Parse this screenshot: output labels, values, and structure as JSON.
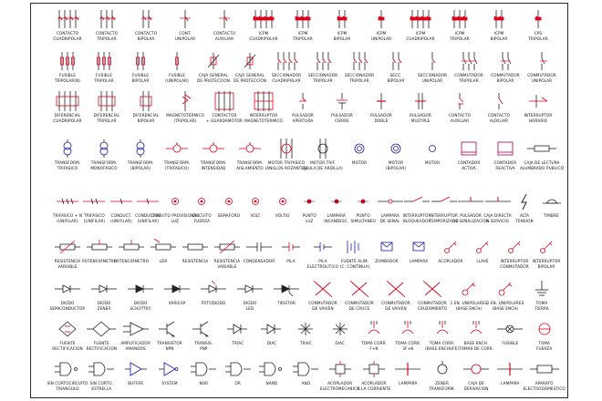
{
  "sheet": {
    "title": ""
  },
  "colors": {
    "red": "#e0001b",
    "dark": "#222222",
    "blue": "#1a1aa6",
    "magenta": "#b0004a"
  },
  "rows": [
    {
      "symbols": [
        {
          "icon": "contact-three-bar",
          "lines": [
            "CONTACTO",
            "CUADRIPOLAR"
          ]
        },
        {
          "icon": "contact-two-bar",
          "lines": [
            "CONTACTO",
            "TRIPOLAR"
          ]
        },
        {
          "icon": "contact-one-bar",
          "lines": [
            "CONTACTO",
            "BIPOLAR"
          ]
        },
        {
          "icon": "contact-single",
          "lines": [
            "CONT.",
            "UNIPOLAR"
          ]
        },
        {
          "icon": "contact-single",
          "lines": [
            "CONTACTO",
            "AUXILIAR"
          ]
        },
        {
          "icon": "breaker-four-pole",
          "lines": [
            "ICPM",
            "CUADRIPOLAR"
          ]
        },
        {
          "icon": "breaker-three-pole",
          "lines": [
            "ICPM",
            "TRIPOLAR"
          ]
        },
        {
          "icon": "breaker-two-pole",
          "lines": [
            "ICPM",
            "BIPOLAR"
          ]
        },
        {
          "icon": "breaker-one-pole",
          "lines": [
            "ICPM",
            "UNIPOLAR"
          ]
        },
        {
          "icon": "cps-four-pole",
          "lines": [
            "ICPM",
            "CUADRIPOLAR"
          ]
        },
        {
          "icon": "cps-three-pole",
          "lines": [
            "ICPM",
            "TRIPOLAR"
          ]
        },
        {
          "icon": "cps-two-pole",
          "lines": [
            "ICPM",
            "BIPOLAR"
          ]
        },
        {
          "icon": "cps-one-pole",
          "lines": [
            "CPS",
            "TRIPOLAR"
          ]
        }
      ]
    },
    {
      "symbols": [
        {
          "icon": "fuse-three",
          "lines": [
            "FUSIBLE",
            "TRIPOLAR(N)"
          ]
        },
        {
          "icon": "fuse-three",
          "lines": [
            "FUSIBLE",
            "TRIPOLAR"
          ]
        },
        {
          "icon": "fuse-two",
          "lines": [
            "FUSIBLE",
            "BIPOLAR"
          ]
        },
        {
          "icon": "fuse-one",
          "lines": [
            "FUSIBLE",
            "(UNIPOLAR)"
          ]
        },
        {
          "icon": "main-box",
          "lines": [
            "CAJA GENERAL",
            "DE PROTECCION"
          ]
        },
        {
          "icon": "main-box",
          "lines": [
            "CAJA GENERAL",
            "DE PROTECCION"
          ]
        },
        {
          "icon": "sectioner-four",
          "lines": [
            "SECCIONADOR",
            "CUADRIPOLAR"
          ]
        },
        {
          "icon": "sectioner-three",
          "lines": [
            "SECCIONADOR",
            "TRIPOLAR"
          ]
        },
        {
          "icon": "sectioner-two",
          "lines": [
            "SECCIONADOR",
            "TRIPOLAR"
          ]
        },
        {
          "icon": "sectioner-one",
          "lines": [
            "SECC.",
            "BIPOLAR"
          ]
        },
        {
          "icon": "sectioner-unipolar",
          "lines": [
            "SECCIONADOR",
            "UNIPOLAR"
          ]
        },
        {
          "icon": "switch-three",
          "lines": [
            "CONMUTADOR",
            "TRIPOLAR"
          ]
        },
        {
          "icon": "switch-two",
          "lines": [
            "CONMUTADOR",
            "BIPOLAR"
          ]
        },
        {
          "icon": "switch-one",
          "lines": [
            "CONMUTADOR",
            "UNIPOLAR"
          ]
        }
      ]
    },
    {
      "symbols": [
        {
          "icon": "differential-four",
          "lines": [
            "DIFERENCIAL",
            "CUADRIPOLAR"
          ]
        },
        {
          "icon": "differential-two",
          "lines": [
            "DIFERENCIAL",
            "TRIPOLAR"
          ]
        },
        {
          "icon": "differential-one",
          "lines": [
            "DIFERENCIAL",
            "BIPOLAR"
          ]
        },
        {
          "icon": "thermal-mag",
          "lines": [
            "MAGNETOTERMICO",
            "(TRIPOLAR)"
          ]
        },
        {
          "icon": "contactor-box",
          "lines": [
            "CONTACTOR",
            "+ GUARDAMOTOR"
          ]
        },
        {
          "icon": "breaker-box",
          "lines": [
            "INTERRUPTOR",
            "MAGNETOTERMICO"
          ]
        },
        {
          "icon": "pushbutton-open",
          "lines": [
            "PULSADOR",
            "APERTURA"
          ]
        },
        {
          "icon": "pushbutton-close",
          "lines": [
            "PULSADOR",
            "CIERRE"
          ]
        },
        {
          "icon": "pushbutton-red",
          "lines": [
            "PULSADOR",
            "DOBLE"
          ]
        },
        {
          "icon": "pushbutton-multi",
          "lines": [
            "PULSADOR",
            "MULTIPLE"
          ]
        },
        {
          "icon": "contact-nc",
          "lines": [
            "CONTACTO",
            "AUXILIAR"
          ]
        },
        {
          "icon": "contact-no",
          "lines": [
            "CONTACTO",
            "AUXILIAR"
          ]
        },
        {
          "icon": "switch-time",
          "lines": [
            "INTERRUPTOR",
            "HORARIO"
          ]
        }
      ]
    },
    {
      "symbols": [
        {
          "icon": "transformer-two",
          "lines": [
            "TRANSFORM.",
            "TRIFASICO"
          ]
        },
        {
          "icon": "transformer-two",
          "lines": [
            "TRANSFORM.",
            "MONOFASICO"
          ]
        },
        {
          "icon": "transformer-two",
          "lines": [
            "TRANSFORM.",
            "(BIPOLAR)"
          ]
        },
        {
          "icon": "transformer-line",
          "lines": [
            "TRANSFORM.",
            "(TRIFASICO)"
          ]
        },
        {
          "icon": "transformer-line",
          "lines": [
            "TRANSFORM.",
            "INTENSIDAD"
          ]
        },
        {
          "icon": "transformer-line",
          "lines": [
            "TRANSFORM.",
            "AISLAMIENTO"
          ]
        },
        {
          "icon": "motor-three",
          "lines": [
            "MOTOR TRIFASICO",
            "(ANILLOS ROZANTES)"
          ]
        },
        {
          "icon": "motor-two",
          "lines": [
            "MOTOR TRIF.",
            "(JAULA DE ARDILLA)"
          ]
        },
        {
          "icon": "motor-circle",
          "lines": [
            "MOTOR",
            ""
          ]
        },
        {
          "icon": "motor-circle",
          "lines": [
            "MOTOR",
            "(BIPOLAR)"
          ]
        },
        {
          "icon": "meter-small",
          "lines": [
            "MOTOR",
            ""
          ]
        },
        {
          "icon": "kwh-box",
          "lines": [
            "CONTADOR",
            "ACTIVA"
          ]
        },
        {
          "icon": "kvar-box",
          "lines": [
            "CONTADOR",
            "REACTIVA"
          ]
        },
        {
          "icon": "resistor-long",
          "lines": [
            "CAJA DE LECTURA",
            "ALUMBRADO PUBLICO"
          ]
        }
      ]
    },
    {
      "symbols": [
        {
          "icon": "triple-line",
          "lines": [
            "TRIFASICO + N",
            "(UNIFILAR)"
          ]
        },
        {
          "icon": "double-line",
          "lines": [
            "TRIFASICO",
            "(UNIFILAR)"
          ]
        },
        {
          "icon": "single-line",
          "lines": [
            "CONDUCT.",
            "(UNIFILAR)"
          ]
        },
        {
          "icon": "single-line",
          "lines": [
            "CONDUCTOR",
            "(UNIFILAR)"
          ]
        },
        {
          "icon": "dot-bullet",
          "lines": [
            "CIRCUITO PROVISIONAL",
            "LUZ"
          ]
        },
        {
          "icon": "dot-bullet",
          "lines": [
            "CIRCUITO",
            "FUERZA"
          ]
        },
        {
          "icon": "dot-bullet",
          "lines": [
            "SEMAFORO",
            ""
          ]
        },
        {
          "icon": "dot-bullet",
          "lines": [
            "VOLT.",
            ""
          ]
        },
        {
          "icon": "dot-bullet",
          "lines": [
            "VOLTIO",
            ""
          ]
        },
        {
          "icon": "dot-small",
          "lines": [
            "PUNTO",
            "LUZ"
          ]
        },
        {
          "icon": "dot-small",
          "lines": [
            "LAMPARA",
            "INCANDESC."
          ]
        },
        {
          "icon": "dot-small",
          "lines": [
            "PUNTO",
            "SIMULTANEO"
          ]
        },
        {
          "icon": "line-lamp",
          "lines": [
            "LAMPARA",
            "DE SEÑAL"
          ]
        },
        {
          "icon": "switch-line",
          "lines": [
            "INTERRUPTOR",
            "BLOQUEADOR"
          ]
        },
        {
          "icon": "switch-line",
          "lines": [
            "INTERRUPTOR",
            "TEMPORIZADO"
          ]
        },
        {
          "icon": "push-small",
          "lines": [
            "PULSADOR",
            "DE SEÑALIZACION"
          ]
        },
        {
          "icon": "push-small",
          "lines": [
            "CAJA DIRECTA",
            "A SERVICIO"
          ]
        },
        {
          "icon": "lightning",
          "lines": [
            "ALTA",
            "TENSION"
          ]
        },
        {
          "icon": "bell",
          "lines": [
            "TIMBRE",
            ""
          ]
        }
      ]
    },
    {
      "symbols": [
        {
          "icon": "variable-res",
          "lines": [
            "RESISTENCIA",
            "VARIABLE"
          ]
        },
        {
          "icon": "potentiometer",
          "lines": [
            "POTENCIOMETRO",
            ""
          ]
        },
        {
          "icon": "potentiometer",
          "lines": [
            "POTENCIOMETRO",
            ""
          ]
        },
        {
          "icon": "ldr",
          "lines": [
            "LDR",
            ""
          ]
        },
        {
          "icon": "resistor",
          "lines": [
            "RESISTENCIA",
            ""
          ]
        },
        {
          "icon": "variable-res",
          "lines": [
            "RESISTENCIA",
            "VARIABLE"
          ]
        },
        {
          "icon": "capacitor-line",
          "lines": [
            "CONDENSADOR",
            ""
          ]
        },
        {
          "icon": "capacitor",
          "lines": [
            "PILA",
            ""
          ]
        },
        {
          "icon": "battery",
          "lines": [
            "PILA",
            "ELECTROLITICO"
          ]
        },
        {
          "icon": "battery-stack",
          "lines": [
            "FUENTE ALIM.",
            "(C. CONTINUA)"
          ]
        },
        {
          "icon": "envelope",
          "lines": [
            "ZUMBADOR",
            ""
          ]
        },
        {
          "icon": "envelope",
          "lines": [
            "LAMPARA",
            ""
          ]
        },
        {
          "icon": "key",
          "lines": [
            "ACOPLADOR",
            ""
          ]
        },
        {
          "icon": "key",
          "lines": [
            "LLAVE",
            ""
          ]
        },
        {
          "icon": "key",
          "lines": [
            "INTERRUPTOR",
            "CONMUTADOR"
          ]
        },
        {
          "icon": "key",
          "lines": [
            "INTERRUPTOR",
            "BIPOLAR"
          ]
        }
      ]
    },
    {
      "symbols": [
        {
          "icon": "diode-line",
          "lines": [
            "DIODO",
            "SEMICONDUCTOR"
          ]
        },
        {
          "icon": "diode",
          "lines": [
            "DIODO",
            "ZENER"
          ]
        },
        {
          "icon": "diode-filled",
          "lines": [
            "DIODO",
            "SCHOTTKY"
          ]
        },
        {
          "icon": "diode-filled",
          "lines": [
            "VARICAP",
            ""
          ]
        },
        {
          "icon": "photodiode",
          "lines": [
            "FOTODIODO",
            ""
          ]
        },
        {
          "icon": "diode",
          "lines": [
            "DIODO",
            "LED"
          ]
        },
        {
          "icon": "thyristor",
          "lines": [
            "TIRISTOR",
            ""
          ]
        },
        {
          "icon": "x-coil",
          "lines": [
            "CONMUTADOR",
            "DE VAIVEN"
          ]
        },
        {
          "icon": "x-coil",
          "lines": [
            "CONMUTADOR",
            "DE CRUCE"
          ]
        },
        {
          "icon": "x-coil",
          "lines": [
            "CONMUTADOR",
            "DE VAIVEN"
          ]
        },
        {
          "icon": "x-coil",
          "lines": [
            "CONMUTADOR",
            "CRUZAMIENTO"
          ]
        },
        {
          "icon": "key-socket",
          "lines": [
            "1 EN. UNIPOLARES",
            "(BASE ENCH)"
          ]
        },
        {
          "icon": "key-socket",
          "lines": [
            "2 EN. UNIPOLARES",
            "(BASE ENCH)"
          ]
        },
        {
          "icon": "earth",
          "lines": [
            "TOMA",
            "TIERRA"
          ]
        }
      ]
    },
    {
      "symbols": [
        {
          "icon": "bridge",
          "lines": [
            "FUENTE",
            "RECTIFICACION"
          ]
        },
        {
          "icon": "bridge-line",
          "lines": [
            "FUENTE",
            "RECTIFICACION"
          ]
        },
        {
          "icon": "amplifier",
          "lines": [
            "AMPLIFICADOR",
            "AMANDOS"
          ]
        },
        {
          "icon": "transistor",
          "lines": [
            "TRANSISTOR",
            "NPN"
          ]
        },
        {
          "icon": "transistor",
          "lines": [
            "TRANSIS.",
            "PNP"
          ]
        },
        {
          "icon": "gate-small",
          "lines": [
            "TRIAC",
            ""
          ]
        },
        {
          "icon": "gate-small",
          "lines": [
            "DIAC",
            ""
          ]
        },
        {
          "icon": "star",
          "lines": [
            "TRIAC",
            ""
          ]
        },
        {
          "icon": "star",
          "lines": [
            "DIAC",
            ""
          ]
        },
        {
          "icon": "socket-red",
          "lines": [
            "TOMA CORR.",
            "F+N"
          ]
        },
        {
          "icon": "socket-red",
          "lines": [
            "TOMA CORR.",
            "3F+N"
          ]
        },
        {
          "icon": "socket-red",
          "lines": [
            "TOMA CORR.",
            "(BASE ENCHUFE)"
          ]
        },
        {
          "icon": "socket-red",
          "lines": [
            "BASE ENCH.",
            "TOMAS DE CORR."
          ]
        },
        {
          "icon": "lamp-x",
          "lines": [
            "FUSIBLE",
            ""
          ]
        },
        {
          "icon": "socket-circle",
          "lines": [
            "TOMA",
            "FUERZA"
          ]
        }
      ]
    },
    {
      "symbols": [
        {
          "icon": "gate-nand",
          "lines": [
            "SIN CORTOCIRCUITO",
            "TRIANGULO"
          ]
        },
        {
          "icon": "gate-and",
          "lines": [
            "SIN CORTO.",
            "ESTRELLA"
          ]
        },
        {
          "icon": "buffer",
          "lines": [
            "BUFFER",
            ""
          ]
        },
        {
          "icon": "buffer-not",
          "lines": [
            "SYSTEM",
            ""
          ]
        },
        {
          "icon": "gate-and",
          "lines": [
            "NOR",
            ""
          ]
        },
        {
          "icon": "gate-and",
          "lines": [
            "OR",
            ""
          ]
        },
        {
          "icon": "gate-nand",
          "lines": [
            "NAND",
            ""
          ]
        },
        {
          "icon": "gate-and",
          "lines": [
            "AND",
            ""
          ]
        },
        {
          "icon": "coupler",
          "lines": [
            "ACOPLADOR",
            "ELECTROMECANICO"
          ]
        },
        {
          "icon": "coupler",
          "lines": [
            "ACOPLADOR",
            "A LA CORRIENTE"
          ]
        },
        {
          "icon": "lamp-line",
          "lines": [
            "LAMPARA",
            ""
          ]
        },
        {
          "icon": "bell-circle",
          "lines": [
            "ZENER",
            "TRANSFORM."
          ]
        },
        {
          "icon": "circle-line",
          "lines": [
            "CAJA DE",
            "DERIVACION"
          ]
        },
        {
          "icon": "lamp-line",
          "lines": [
            "LAMPARA",
            ""
          ]
        },
        {
          "icon": "resistor-line",
          "lines": [
            "APARATO",
            "ELECTRODOMESTICO"
          ]
        }
      ]
    }
  ]
}
